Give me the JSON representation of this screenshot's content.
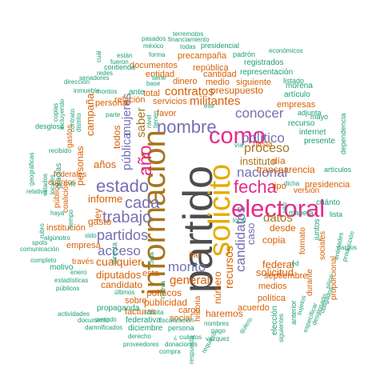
{
  "colors": {
    "grey": "#4d4d4d",
    "brown": "#a6761d",
    "magenta": "#e7298a",
    "purple": "#7570b3",
    "orange": "#d95f02",
    "green": "#1b9e77",
    "gold": "#e6ab02",
    "olive": "#66a61e"
  },
  "words": [
    {
      "text": "partido",
      "color": "grey"
    },
    {
      "text": "información",
      "color": "brown"
    },
    {
      "text": "solicito",
      "color": "gold"
    },
    {
      "text": "electoral",
      "color": "magenta"
    },
    {
      "text": "como",
      "color": "magenta"
    },
    {
      "text": "fecha",
      "color": "magenta"
    },
    {
      "text": "año",
      "color": "magenta"
    },
    {
      "text": "estado",
      "color": "purple"
    },
    {
      "text": "nombre",
      "color": "purple"
    },
    {
      "text": "trabajo",
      "color": "purple"
    },
    {
      "text": "cada",
      "color": "purple"
    },
    {
      "text": "partidos",
      "color": "purple"
    },
    {
      "text": "nacional",
      "color": "purple"
    },
    {
      "text": "político",
      "color": "purple"
    },
    {
      "text": "conocer",
      "color": "purple"
    },
    {
      "text": "candidatos",
      "color": "purple"
    },
    {
      "text": "acceso",
      "color": "purple"
    },
    {
      "text": "monto",
      "color": "purple"
    },
    {
      "text": "pública",
      "color": "purple"
    },
    {
      "text": "mujeres",
      "color": "purple"
    },
    {
      "text": "saber",
      "color": "brown"
    },
    {
      "text": "proceso",
      "color": "brown"
    },
    {
      "text": "instituto",
      "color": "brown"
    },
    {
      "text": "datos",
      "color": "brown"
    },
    {
      "text": "caso",
      "color": "purple"
    },
    {
      "text": "general",
      "color": "orange"
    },
    {
      "text": "recursos",
      "color": "orange"
    },
    {
      "text": "militantes",
      "color": "orange"
    },
    {
      "text": "contratos",
      "color": "orange"
    },
    {
      "text": "cualquier",
      "color": "orange"
    },
    {
      "text": "solicitud",
      "color": "orange"
    },
    {
      "text": "informe",
      "color": "orange"
    },
    {
      "text": "años",
      "color": "orange"
    },
    {
      "text": "desde",
      "color": "orange"
    },
    {
      "text": "todos",
      "color": "orange"
    },
    {
      "text": "campaña",
      "color": "orange"
    },
    {
      "text": "diputados",
      "color": "orange"
    },
    {
      "text": "candidato",
      "color": "orange"
    },
    {
      "text": "transparencia",
      "color": "orange"
    },
    {
      "text": "federal",
      "color": "orange"
    },
    {
      "text": "ley",
      "color": "orange"
    },
    {
      "text": "gasto",
      "color": "orange"
    },
    {
      "text": "políticos",
      "color": "orange"
    },
    {
      "text": "publicidad",
      "color": "orange"
    },
    {
      "text": "número",
      "color": "orange"
    },
    {
      "text": "haremos",
      "color": "orange"
    },
    {
      "text": "ine",
      "color": "orange"
    },
    {
      "text": "esta",
      "color": "orange"
    },
    {
      "text": "presupuesto",
      "color": "orange"
    },
    {
      "text": "servicios",
      "color": "orange"
    },
    {
      "text": "dinero",
      "color": "orange"
    },
    {
      "text": "medio",
      "color": "orange"
    },
    {
      "text": "siguiente",
      "color": "orange"
    },
    {
      "text": "copia",
      "color": "orange"
    },
    {
      "text": "septiembre",
      "color": "orange"
    },
    {
      "text": "medios",
      "color": "orange"
    },
    {
      "text": "empresas",
      "color": "orange"
    },
    {
      "text": "hasta",
      "color": "orange"
    },
    {
      "text": "día",
      "color": "orange"
    },
    {
      "text": "tipo",
      "color": "orange"
    },
    {
      "text": "favor",
      "color": "orange"
    },
    {
      "text": "total",
      "color": "orange"
    },
    {
      "text": "república",
      "color": "orange"
    },
    {
      "text": "entidad",
      "color": "orange"
    },
    {
      "text": "cantidad",
      "color": "orange"
    },
    {
      "text": "documentos",
      "color": "orange"
    },
    {
      "text": "precampaña",
      "color": "orange"
    },
    {
      "text": "personal",
      "color": "orange"
    },
    {
      "text": "federales",
      "color": "orange"
    },
    {
      "text": "gastos",
      "color": "orange"
    },
    {
      "text": "personas",
      "color": "orange"
    },
    {
      "text": "cuántos",
      "color": "orange"
    },
    {
      "text": "empresa",
      "color": "orange"
    },
    {
      "text": "través",
      "color": "orange"
    },
    {
      "text": "público",
      "color": "orange"
    },
    {
      "text": "coalición",
      "color": "orange"
    },
    {
      "text": "institución",
      "color": "orange"
    },
    {
      "text": "relación",
      "color": "orange"
    },
    {
      "text": "facturas",
      "color": "orange"
    },
    {
      "text": "sobre",
      "color": "orange"
    },
    {
      "text": "cargo",
      "color": "orange"
    },
    {
      "text": "social",
      "color": "orange"
    },
    {
      "text": "política",
      "color": "orange"
    },
    {
      "text": "acuerdo",
      "color": "orange"
    },
    {
      "text": "presidencia",
      "color": "orange"
    },
    {
      "text": "formato",
      "color": "orange"
    },
    {
      "text": "versión",
      "color": "orange"
    },
    {
      "text": "sociales",
      "color": "orange"
    },
    {
      "text": "durante",
      "color": "orange"
    },
    {
      "text": "proporcional",
      "color": "orange"
    },
    {
      "text": "propaganda",
      "color": "green"
    },
    {
      "text": "historia",
      "color": "orange"
    },
    {
      "text": "ante",
      "color": "green"
    },
    {
      "text": "gracias",
      "color": "green"
    },
    {
      "text": "directa",
      "color": "green"
    },
    {
      "text": "motivo",
      "color": "green"
    },
    {
      "text": "listado",
      "color": "green"
    },
    {
      "text": "registrados",
      "color": "green"
    },
    {
      "text": "representación",
      "color": "green"
    },
    {
      "text": "artículo",
      "color": "green"
    },
    {
      "text": "morena",
      "color": "green"
    },
    {
      "text": "adjunta",
      "color": "green"
    },
    {
      "text": "recurso",
      "color": "green"
    },
    {
      "text": "internet",
      "color": "green"
    },
    {
      "text": "presente",
      "color": "green"
    },
    {
      "text": "cuánto",
      "color": "green"
    },
    {
      "text": "manera",
      "color": "green"
    },
    {
      "text": "lista",
      "color": "green"
    },
    {
      "text": "artículos",
      "color": "green"
    },
    {
      "text": "dependencia",
      "color": "green"
    },
    {
      "text": "mayo",
      "color": "green"
    },
    {
      "text": "terremotos",
      "color": "green"
    },
    {
      "text": "pasados",
      "color": "green"
    },
    {
      "text": "financiamiento",
      "color": "green"
    },
    {
      "text": "inmueble",
      "color": "green"
    },
    {
      "text": "méxico",
      "color": "green"
    },
    {
      "text": "todas",
      "color": "green"
    },
    {
      "text": "presidencial",
      "color": "green"
    },
    {
      "text": "económicos",
      "color": "green"
    },
    {
      "text": "están",
      "color": "green"
    },
    {
      "text": "forma",
      "color": "green"
    },
    {
      "text": "padrón",
      "color": "green"
    },
    {
      "text": "cuál",
      "color": "green"
    },
    {
      "text": "fueron",
      "color": "green"
    },
    {
      "text": "contienda",
      "color": "green"
    },
    {
      "text": "redes",
      "color": "green"
    },
    {
      "text": "senadores",
      "color": "green"
    },
    {
      "text": "dirección",
      "color": "green"
    },
    {
      "text": "montos",
      "color": "green"
    },
    {
      "text": "base",
      "color": "green"
    },
    {
      "text": "tiene",
      "color": "green"
    },
    {
      "text": "ese",
      "color": "green"
    },
    {
      "text": "nivel",
      "color": "green"
    },
    {
      "text": "tienen",
      "color": "green"
    },
    {
      "text": "parte",
      "color": "green"
    },
    {
      "text": "vía",
      "color": "green"
    },
    {
      "text": "copias",
      "color": "green"
    },
    {
      "text": "incluyendo",
      "color": "green"
    },
    {
      "text": "contrato",
      "color": "green"
    },
    {
      "text": "distrito",
      "color": "green"
    },
    {
      "text": "desglose",
      "color": "green"
    },
    {
      "text": "recibido",
      "color": "green"
    },
    {
      "text": "geográficas",
      "color": "green"
    },
    {
      "text": "relativa",
      "color": "green"
    },
    {
      "text": "rfc",
      "color": "green"
    },
    {
      "text": "haya",
      "color": "green"
    },
    {
      "text": "estados",
      "color": "green"
    },
    {
      "text": "locales",
      "color": "green"
    },
    {
      "text": "rubro",
      "color": "green"
    },
    {
      "text": "algún",
      "color": "green"
    },
    {
      "text": "tiempo",
      "color": "green"
    },
    {
      "text": "otro",
      "color": "green"
    },
    {
      "text": "spots",
      "color": "green"
    },
    {
      "text": "comunicación",
      "color": "green"
    },
    {
      "text": "completo",
      "color": "green"
    },
    {
      "text": "estadísticas",
      "color": "green"
    },
    {
      "text": "públicos",
      "color": "green"
    },
    {
      "text": "enero",
      "color": "green"
    },
    {
      "text": "sido",
      "color": "green"
    },
    {
      "text": "periodo",
      "color": "green"
    },
    {
      "text": "documento",
      "color": "green"
    },
    {
      "text": "damnificados",
      "color": "green"
    },
    {
      "text": "federativa",
      "color": "green"
    },
    {
      "text": "diciembre",
      "color": "green"
    },
    {
      "text": "persona",
      "color": "green"
    },
    {
      "text": "derecho",
      "color": "green"
    },
    {
      "text": "¿ cuántos",
      "color": "green"
    },
    {
      "text": "proveedores",
      "color": "green"
    },
    {
      "text": "donaciones",
      "color": "green"
    },
    {
      "text": "compra",
      "color": "green"
    },
    {
      "text": "fiscalización",
      "color": "green"
    },
    {
      "text": "últimos",
      "color": "green"
    },
    {
      "text": "solicita",
      "color": "green"
    },
    {
      "text": "actividades",
      "color": "green"
    },
    {
      "text": "nombres",
      "color": "green"
    },
    {
      "text": "pago",
      "color": "green"
    },
    {
      "text": "vazquez",
      "color": "green"
    },
    {
      "text": "respuesta",
      "color": "green"
    },
    {
      "text": "requiero",
      "color": "green"
    },
    {
      "text": "quiero",
      "color": "green"
    },
    {
      "text": "elección",
      "color": "green"
    },
    {
      "text": "siguientes",
      "color": "green"
    },
    {
      "text": "anterior",
      "color": "green"
    },
    {
      "text": "sujetos",
      "color": "green"
    },
    {
      "text": "específicar",
      "color": "green"
    },
    {
      "text": "desglosado",
      "color": "green"
    },
    {
      "text": "obligados",
      "color": "green"
    },
    {
      "text": "sitios",
      "color": "green"
    },
    {
      "text": "entidades",
      "color": "green"
    },
    {
      "text": "producción",
      "color": "green"
    },
    {
      "text": "cargos",
      "color": "green"
    },
    {
      "text": "red",
      "color": "green"
    },
    {
      "text": "local",
      "color": "green"
    },
    {
      "text": "uso",
      "color": "green"
    },
    {
      "text": "dicha",
      "color": "green"
    },
    {
      "text": "nueva",
      "color": "green"
    },
    {
      "text": "casa",
      "color": "green"
    },
    {
      "text": "juntos",
      "color": "green"
    }
  ]
}
